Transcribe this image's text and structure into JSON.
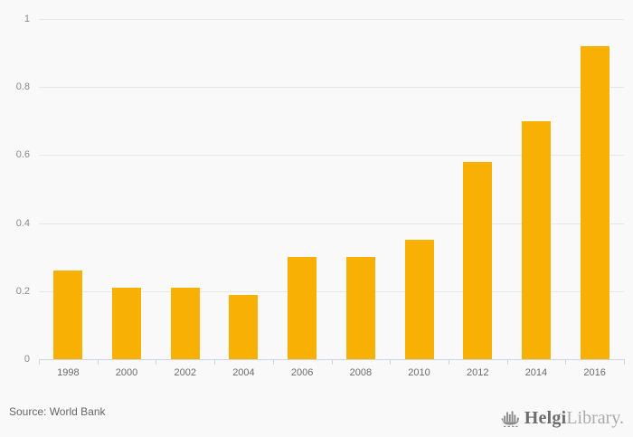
{
  "chart_data": {
    "type": "bar",
    "title": "",
    "xlabel": "",
    "ylabel": "",
    "categories": [
      "1998",
      "2000",
      "2002",
      "2004",
      "2006",
      "2008",
      "2010",
      "2012",
      "2014",
      "2016"
    ],
    "values": [
      0.26,
      0.21,
      0.21,
      0.19,
      0.3,
      0.3,
      0.35,
      0.58,
      0.7,
      0.92
    ],
    "ylim": [
      0,
      1
    ],
    "yticks": [
      0,
      0.2,
      0.4,
      0.6,
      0.8,
      1
    ],
    "ytick_labels": [
      "0",
      "0.2",
      "0.4",
      "0.6",
      "0.8",
      "1"
    ],
    "grid": true,
    "legend": false,
    "bar_color": "#f9b004"
  },
  "colors": {
    "background": "#f9f9f9",
    "grid": "#e7e7e7",
    "axis": "#ccd6eb",
    "bar": "#f9b004",
    "tick_label": "#8a8a8a",
    "category_label": "#6b6b6b",
    "source_text": "#666666",
    "logo_primary": "#6e6e6e",
    "logo_secondary": "#ababab",
    "logo_icon": "#8a8a8a"
  },
  "footer": {
    "source_label": "Source: World Bank",
    "logo": {
      "icon": "helgi-ship-icon",
      "primary": "Helgi",
      "secondary": "Library."
    }
  }
}
